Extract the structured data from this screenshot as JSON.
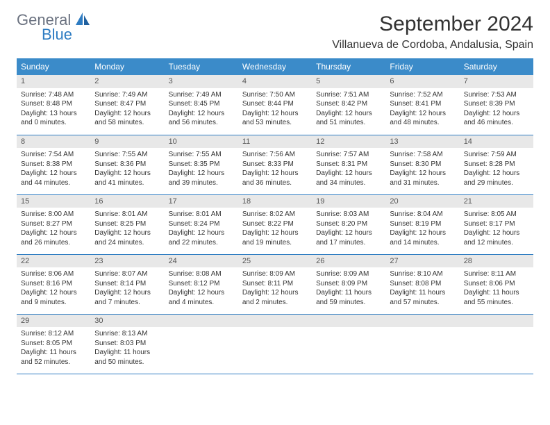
{
  "logo": {
    "general": "General",
    "blue": "Blue"
  },
  "title": "September 2024",
  "location": "Villanueva de Cordoba, Andalusia, Spain",
  "colors": {
    "header_bg": "#3b8bc9",
    "header_text": "#ffffff",
    "row_divider": "#2e7cc2",
    "daynum_bg": "#e8e8e8",
    "logo_gray": "#6b7280",
    "logo_blue": "#2e7cc2"
  },
  "day_headers": [
    "Sunday",
    "Monday",
    "Tuesday",
    "Wednesday",
    "Thursday",
    "Friday",
    "Saturday"
  ],
  "weeks": [
    [
      {
        "n": "1",
        "sunrise": "7:48 AM",
        "sunset": "8:48 PM",
        "dl_h": "13",
        "dl_m": "0"
      },
      {
        "n": "2",
        "sunrise": "7:49 AM",
        "sunset": "8:47 PM",
        "dl_h": "12",
        "dl_m": "58"
      },
      {
        "n": "3",
        "sunrise": "7:49 AM",
        "sunset": "8:45 PM",
        "dl_h": "12",
        "dl_m": "56"
      },
      {
        "n": "4",
        "sunrise": "7:50 AM",
        "sunset": "8:44 PM",
        "dl_h": "12",
        "dl_m": "53"
      },
      {
        "n": "5",
        "sunrise": "7:51 AM",
        "sunset": "8:42 PM",
        "dl_h": "12",
        "dl_m": "51"
      },
      {
        "n": "6",
        "sunrise": "7:52 AM",
        "sunset": "8:41 PM",
        "dl_h": "12",
        "dl_m": "48"
      },
      {
        "n": "7",
        "sunrise": "7:53 AM",
        "sunset": "8:39 PM",
        "dl_h": "12",
        "dl_m": "46"
      }
    ],
    [
      {
        "n": "8",
        "sunrise": "7:54 AM",
        "sunset": "8:38 PM",
        "dl_h": "12",
        "dl_m": "44"
      },
      {
        "n": "9",
        "sunrise": "7:55 AM",
        "sunset": "8:36 PM",
        "dl_h": "12",
        "dl_m": "41"
      },
      {
        "n": "10",
        "sunrise": "7:55 AM",
        "sunset": "8:35 PM",
        "dl_h": "12",
        "dl_m": "39"
      },
      {
        "n": "11",
        "sunrise": "7:56 AM",
        "sunset": "8:33 PM",
        "dl_h": "12",
        "dl_m": "36"
      },
      {
        "n": "12",
        "sunrise": "7:57 AM",
        "sunset": "8:31 PM",
        "dl_h": "12",
        "dl_m": "34"
      },
      {
        "n": "13",
        "sunrise": "7:58 AM",
        "sunset": "8:30 PM",
        "dl_h": "12",
        "dl_m": "31"
      },
      {
        "n": "14",
        "sunrise": "7:59 AM",
        "sunset": "8:28 PM",
        "dl_h": "12",
        "dl_m": "29"
      }
    ],
    [
      {
        "n": "15",
        "sunrise": "8:00 AM",
        "sunset": "8:27 PM",
        "dl_h": "12",
        "dl_m": "26"
      },
      {
        "n": "16",
        "sunrise": "8:01 AM",
        "sunset": "8:25 PM",
        "dl_h": "12",
        "dl_m": "24"
      },
      {
        "n": "17",
        "sunrise": "8:01 AM",
        "sunset": "8:24 PM",
        "dl_h": "12",
        "dl_m": "22"
      },
      {
        "n": "18",
        "sunrise": "8:02 AM",
        "sunset": "8:22 PM",
        "dl_h": "12",
        "dl_m": "19"
      },
      {
        "n": "19",
        "sunrise": "8:03 AM",
        "sunset": "8:20 PM",
        "dl_h": "12",
        "dl_m": "17"
      },
      {
        "n": "20",
        "sunrise": "8:04 AM",
        "sunset": "8:19 PM",
        "dl_h": "12",
        "dl_m": "14"
      },
      {
        "n": "21",
        "sunrise": "8:05 AM",
        "sunset": "8:17 PM",
        "dl_h": "12",
        "dl_m": "12"
      }
    ],
    [
      {
        "n": "22",
        "sunrise": "8:06 AM",
        "sunset": "8:16 PM",
        "dl_h": "12",
        "dl_m": "9"
      },
      {
        "n": "23",
        "sunrise": "8:07 AM",
        "sunset": "8:14 PM",
        "dl_h": "12",
        "dl_m": "7"
      },
      {
        "n": "24",
        "sunrise": "8:08 AM",
        "sunset": "8:12 PM",
        "dl_h": "12",
        "dl_m": "4"
      },
      {
        "n": "25",
        "sunrise": "8:09 AM",
        "sunset": "8:11 PM",
        "dl_h": "12",
        "dl_m": "2"
      },
      {
        "n": "26",
        "sunrise": "8:09 AM",
        "sunset": "8:09 PM",
        "dl_h": "11",
        "dl_m": "59"
      },
      {
        "n": "27",
        "sunrise": "8:10 AM",
        "sunset": "8:08 PM",
        "dl_h": "11",
        "dl_m": "57"
      },
      {
        "n": "28",
        "sunrise": "8:11 AM",
        "sunset": "8:06 PM",
        "dl_h": "11",
        "dl_m": "55"
      }
    ],
    [
      {
        "n": "29",
        "sunrise": "8:12 AM",
        "sunset": "8:05 PM",
        "dl_h": "11",
        "dl_m": "52"
      },
      {
        "n": "30",
        "sunrise": "8:13 AM",
        "sunset": "8:03 PM",
        "dl_h": "11",
        "dl_m": "50"
      },
      null,
      null,
      null,
      null,
      null
    ]
  ],
  "labels": {
    "sunrise_prefix": "Sunrise: ",
    "sunset_prefix": "Sunset: ",
    "daylight_prefix": "Daylight: ",
    "hours_word": " hours",
    "and_word": "and ",
    "minutes_word": " minutes."
  }
}
